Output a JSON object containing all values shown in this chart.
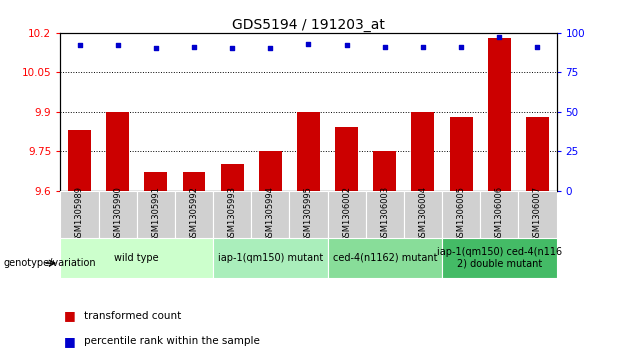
{
  "title": "GDS5194 / 191203_at",
  "samples": [
    "GSM1305989",
    "GSM1305990",
    "GSM1305991",
    "GSM1305992",
    "GSM1305993",
    "GSM1305994",
    "GSM1305995",
    "GSM1306002",
    "GSM1306003",
    "GSM1306004",
    "GSM1306005",
    "GSM1306006",
    "GSM1306007"
  ],
  "transformed_counts": [
    9.83,
    9.9,
    9.67,
    9.67,
    9.7,
    9.75,
    9.9,
    9.84,
    9.75,
    9.9,
    9.88,
    10.18,
    9.88
  ],
  "percentile_ranks": [
    92,
    92,
    90,
    91,
    90,
    90,
    93,
    92,
    91,
    91,
    91,
    97,
    91
  ],
  "ylim_left": [
    9.6,
    10.2
  ],
  "ylim_right": [
    0,
    100
  ],
  "yticks_left": [
    9.6,
    9.75,
    9.9,
    10.05,
    10.2
  ],
  "yticks_right": [
    0,
    25,
    50,
    75,
    100
  ],
  "grid_values": [
    9.75,
    9.9,
    10.05
  ],
  "bar_color": "#cc0000",
  "dot_color": "#0000cc",
  "bar_width": 0.6,
  "groups": [
    {
      "label": "wild type",
      "start": 0,
      "end": 4,
      "color": "#ccffcc"
    },
    {
      "label": "iap-1(qm150) mutant",
      "start": 4,
      "end": 7,
      "color": "#aaeebb"
    },
    {
      "label": "ced-4(n1162) mutant",
      "start": 7,
      "end": 10,
      "color": "#88dd99"
    },
    {
      "label": "iap-1(qm150) ced-4(n116\n2) double mutant",
      "start": 10,
      "end": 13,
      "color": "#44bb66"
    }
  ],
  "sample_bg_color": "#d0d0d0",
  "sample_border_color": "#ffffff",
  "legend_bar_label": "transformed count",
  "legend_dot_label": "percentile rank within the sample",
  "xlabel_group": "genotype/variation",
  "title_fontsize": 10,
  "tick_fontsize": 7.5,
  "sample_fontsize": 6.0,
  "group_fontsize": 7.0,
  "legend_fontsize": 7.5
}
